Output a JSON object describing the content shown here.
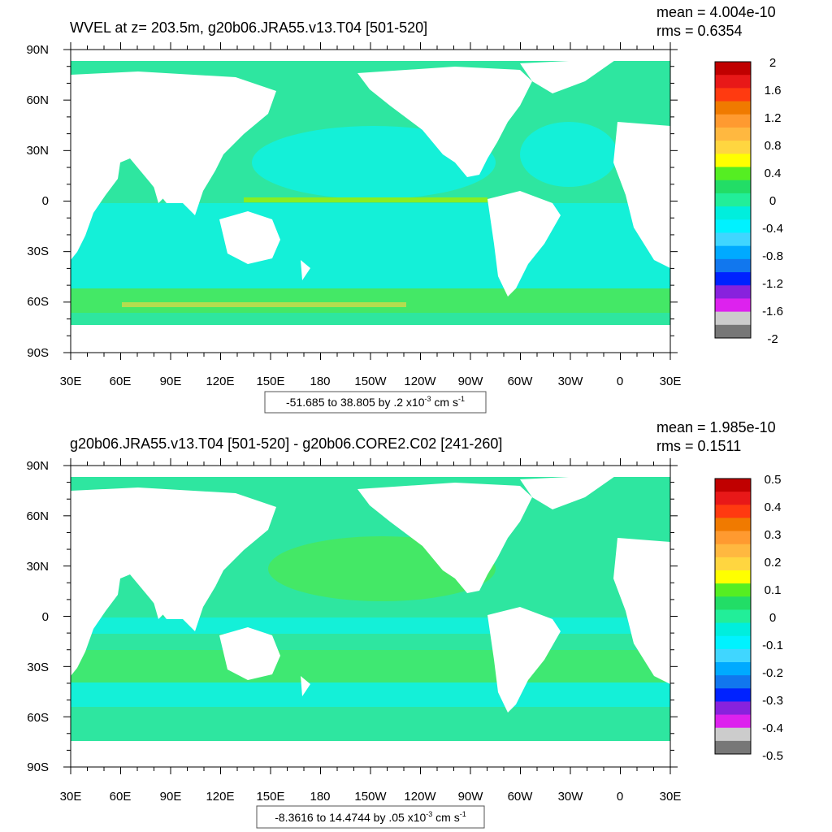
{
  "colors": {
    "land": "#ffffff",
    "frame": "#000000",
    "info_box_border": "#555555"
  },
  "chart_data": [
    {
      "type": "heatmap",
      "title": "WVEL at z= 203.5m, g20b06.JRA55.v13.T04 [501-520]",
      "stats": {
        "mean": "mean = 4.004e-10",
        "rms": "rms = 0.6354"
      },
      "x_ticks": [
        "30E",
        "60E",
        "90E",
        "120E",
        "150E",
        "180",
        "150W",
        "120W",
        "90W",
        "60W",
        "30W",
        "0",
        "30E"
      ],
      "y_ticks": [
        "90N",
        "60N",
        "30N",
        "0",
        "30S",
        "60S",
        "90S"
      ],
      "colorbar": {
        "labels": [
          "2",
          "1.6",
          "1.2",
          "0.8",
          "0.4",
          "0",
          "-0.4",
          "-0.8",
          "-1.2",
          "-1.6",
          "-2"
        ],
        "colors": [
          "#c00000",
          "#e81818",
          "#ff3a10",
          "#f07a00",
          "#ff9a30",
          "#ffb840",
          "#ffd640",
          "#ffff00",
          "#55ee22",
          "#22dd66",
          "#22ee99",
          "#00eedd",
          "#00f2ff",
          "#40d6ff",
          "#00aaff",
          "#1177ee",
          "#0022ff",
          "#8822dd",
          "#dd22ee",
          "#cccccc",
          "#777777"
        ]
      },
      "info": {
        "range": "-51.685 to 38.805 by .2 x10",
        "exp": "-3",
        "unit": " cm s",
        "unit_exp": "-1"
      }
    },
    {
      "type": "heatmap",
      "title": "g20b06.JRA55.v13.T04 [501-520] - g20b06.CORE2.C02 [241-260]",
      "stats": {
        "mean": "mean = 1.985e-10",
        "rms": "rms = 0.1511"
      },
      "x_ticks": [
        "30E",
        "60E",
        "90E",
        "120E",
        "150E",
        "180",
        "150W",
        "120W",
        "90W",
        "60W",
        "30W",
        "0",
        "30E"
      ],
      "y_ticks": [
        "90N",
        "60N",
        "30N",
        "0",
        "30S",
        "60S",
        "90S"
      ],
      "colorbar": {
        "labels": [
          "0.5",
          "0.4",
          "0.3",
          "0.2",
          "0.1",
          "0",
          "-0.1",
          "-0.2",
          "-0.3",
          "-0.4",
          "-0.5"
        ],
        "colors": [
          "#c00000",
          "#e81818",
          "#ff3a10",
          "#f07a00",
          "#ff9a30",
          "#ffb840",
          "#ffd640",
          "#ffff00",
          "#55ee22",
          "#22dd66",
          "#22ee99",
          "#00eedd",
          "#00f2ff",
          "#40d6ff",
          "#00aaff",
          "#1177ee",
          "#0022ff",
          "#8822dd",
          "#dd22ee",
          "#cccccc",
          "#777777"
        ]
      },
      "info": {
        "range": "-8.3616 to 14.4744 by .05 x10",
        "exp": "-3",
        "unit": " cm s",
        "unit_exp": "-1"
      }
    }
  ]
}
